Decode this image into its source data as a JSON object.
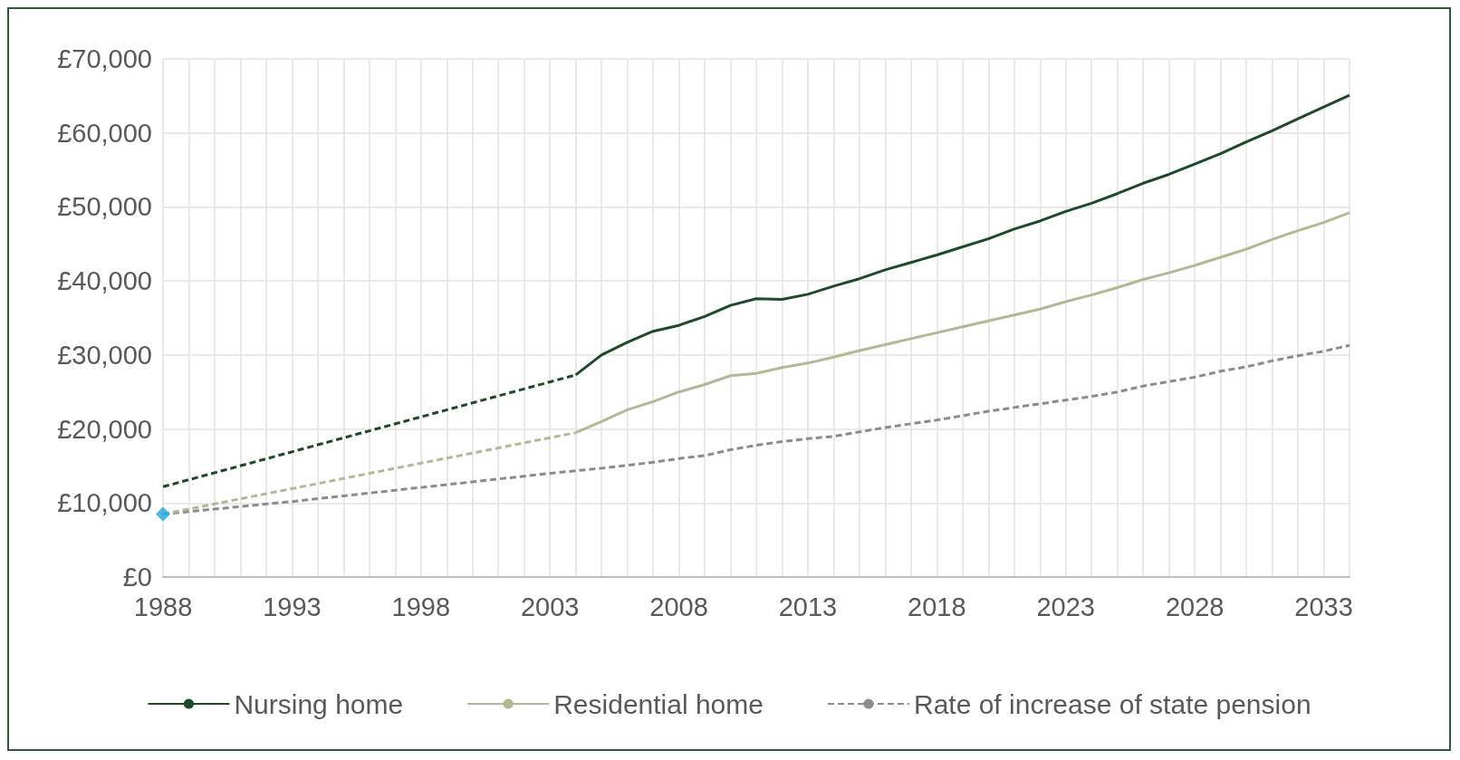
{
  "chart_data": {
    "type": "line",
    "xlim": [
      1988,
      2034
    ],
    "ylim": [
      0,
      70000
    ],
    "xticks": [
      1988,
      {
        "value": 1989,
        "label": null
      },
      {
        "value": 1990,
        "label": null
      },
      {
        "value": 1991,
        "label": null
      },
      {
        "value": 1992,
        "label": null
      },
      1993,
      {
        "value": 1994,
        "label": null
      },
      {
        "value": 1995,
        "label": null
      },
      {
        "value": 1996,
        "label": null
      },
      {
        "value": 1997,
        "label": null
      },
      1998,
      {
        "value": 1999,
        "label": null
      },
      {
        "value": 2000,
        "label": null
      },
      {
        "value": 2001,
        "label": null
      },
      {
        "value": 2002,
        "label": null
      },
      2003,
      {
        "value": 2004,
        "label": null
      },
      {
        "value": 2005,
        "label": null
      },
      {
        "value": 2006,
        "label": null
      },
      {
        "value": 2007,
        "label": null
      },
      2008,
      {
        "value": 2009,
        "label": null
      },
      {
        "value": 2010,
        "label": null
      },
      {
        "value": 2011,
        "label": null
      },
      {
        "value": 2012,
        "label": null
      },
      2013,
      {
        "value": 2014,
        "label": null
      },
      {
        "value": 2015,
        "label": null
      },
      {
        "value": 2016,
        "label": null
      },
      {
        "value": 2017,
        "label": null
      },
      2018,
      {
        "value": 2019,
        "label": null
      },
      {
        "value": 2020,
        "label": null
      },
      {
        "value": 2021,
        "label": null
      },
      {
        "value": 2022,
        "label": null
      },
      2023,
      {
        "value": 2024,
        "label": null
      },
      {
        "value": 2025,
        "label": null
      },
      {
        "value": 2026,
        "label": null
      },
      {
        "value": 2027,
        "label": null
      },
      2028,
      {
        "value": 2029,
        "label": null
      },
      {
        "value": 2030,
        "label": null
      },
      {
        "value": 2031,
        "label": null
      },
      {
        "value": 2032,
        "label": null
      },
      2033,
      {
        "value": 2034,
        "label": null
      }
    ],
    "yticks": [
      {
        "value": 0,
        "label": "£0"
      },
      {
        "value": 10000,
        "label": "£10,000"
      },
      {
        "value": 20000,
        "label": "£20,000"
      },
      {
        "value": 30000,
        "label": "£30,000"
      },
      {
        "value": 40000,
        "label": "£40,000"
      },
      {
        "value": 50000,
        "label": "£50,000"
      },
      {
        "value": 60000,
        "label": "£60,000"
      },
      {
        "value": 70000,
        "label": "£70,000"
      }
    ],
    "grid": true,
    "legend": "bottom",
    "marker": "none",
    "series": [
      {
        "name": "Nursing home",
        "color": "#1e4a2a",
        "line_style": "solid",
        "x": [
          2004,
          2005,
          2006,
          2007,
          2008,
          2009,
          2010,
          2011,
          2012,
          2013,
          2014,
          2015,
          2016,
          2017,
          2018,
          2019,
          2020,
          2021,
          2022,
          2023,
          2024,
          2025,
          2026,
          2027,
          2028,
          2029,
          2030,
          2031,
          2032,
          2033,
          2034
        ],
        "values": [
          27300,
          30000,
          31700,
          33200,
          34000,
          35200,
          36700,
          37600,
          37500,
          38200,
          39300,
          40300,
          41500,
          42500,
          43500,
          44600,
          45700,
          47000,
          48100,
          49400,
          50500,
          51800,
          53200,
          54400,
          55800,
          57200,
          58800,
          60300,
          61900,
          63500,
          65100
        ]
      },
      {
        "name": "Residential home",
        "color": "#b3b994",
        "line_style": "solid",
        "x": [
          2004,
          2005,
          2006,
          2007,
          2008,
          2009,
          2010,
          2011,
          2012,
          2013,
          2014,
          2015,
          2016,
          2017,
          2018,
          2019,
          2020,
          2021,
          2022,
          2023,
          2024,
          2025,
          2026,
          2027,
          2028,
          2029,
          2030,
          2031,
          2032,
          2033,
          2034
        ],
        "values": [
          19500,
          21000,
          22600,
          23700,
          25000,
          26000,
          27200,
          27500,
          28300,
          28900,
          29700,
          30600,
          31400,
          32200,
          33000,
          33800,
          34600,
          35400,
          36200,
          37200,
          38100,
          39100,
          40200,
          41100,
          42100,
          43200,
          44300,
          45600,
          46800,
          47900,
          49200
        ]
      },
      {
        "name": "Rate of increase of state pension",
        "color": "#8c8c8c",
        "line_style": "dashed",
        "x": [
          1988,
          1993,
          1998,
          2003,
          2005,
          2006,
          2007,
          2008,
          2009,
          2010,
          2011,
          2012,
          2013,
          2014,
          2015,
          2016,
          2017,
          2018,
          2019,
          2020,
          2021,
          2022,
          2023,
          2024,
          2025,
          2026,
          2027,
          2028,
          2029,
          2030,
          2031,
          2032,
          2033,
          2034
        ],
        "values": [
          8500,
          10200,
          12100,
          14000,
          14700,
          15100,
          15500,
          16000,
          16400,
          17200,
          17800,
          18300,
          18700,
          19000,
          19600,
          20200,
          20700,
          21200,
          21800,
          22400,
          22900,
          23400,
          23900,
          24400,
          25000,
          25800,
          26400,
          27000,
          27800,
          28400,
          29200,
          29900,
          30500,
          31300
        ]
      },
      {
        "color": "#1e4a2a",
        "line_style": "dashed",
        "x": [
          1988,
          2004
        ],
        "values": [
          12200,
          27300
        ]
      },
      {
        "color": "#b3b994",
        "line_style": "dashed",
        "x": [
          1988,
          2004
        ],
        "values": [
          8500,
          19500
        ]
      },
      {
        "type": "scatter",
        "color": "#1aa9df",
        "marker": "diamond",
        "x": [
          1988
        ],
        "values": [
          8500
        ]
      }
    ]
  }
}
